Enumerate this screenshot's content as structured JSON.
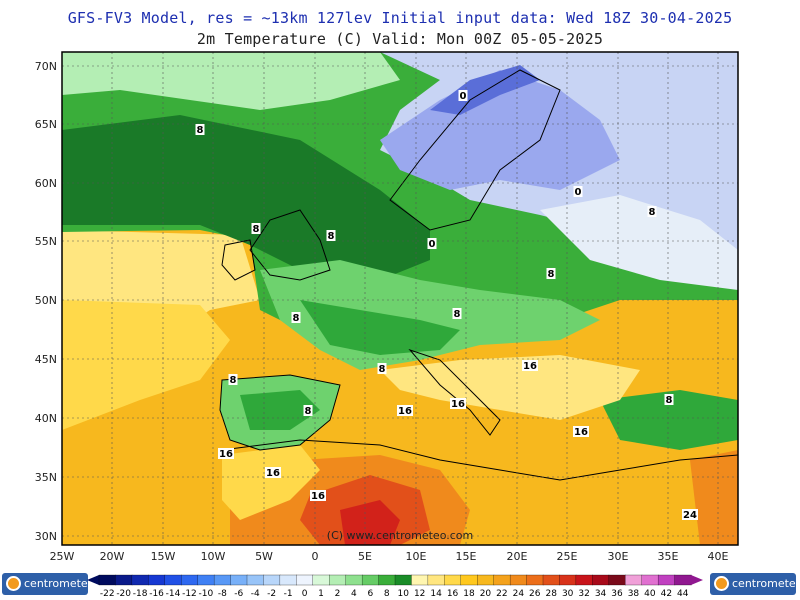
{
  "header": {
    "title_line1": "GFS-FV3 Model, res = ~13km 127lev    Initial input data: Wed 18Z 30-04-2025",
    "title_line2": "2m Temperature (C)  Valid: Mon 00Z 05-05-2025"
  },
  "map": {
    "watermark": "(C) www.centrometeo.com",
    "lon_labels": [
      "25W",
      "20W",
      "15W",
      "10W",
      "5W",
      "0",
      "5E",
      "10E",
      "15E",
      "20E",
      "25E",
      "30E",
      "35E",
      "40E"
    ],
    "lat_labels": [
      "70N",
      "65N",
      "60N",
      "55N",
      "50N",
      "45N",
      "40N",
      "35N",
      "30N"
    ],
    "contour_labels": [
      {
        "text": "8",
        "color": "#000000"
      },
      {
        "text": "0",
        "color": "#000000"
      },
      {
        "text": "8",
        "color": "#000000"
      },
      {
        "text": "0",
        "color": "#000000"
      },
      {
        "text": "0",
        "color": "#000000"
      },
      {
        "text": "8",
        "color": "#000000"
      },
      {
        "text": "8",
        "color": "#000000"
      },
      {
        "text": "8",
        "color": "#000000"
      },
      {
        "text": "8",
        "color": "#000000"
      },
      {
        "text": "8",
        "color": "#000000"
      },
      {
        "text": "8",
        "color": "#000000"
      },
      {
        "text": "8",
        "color": "#000000"
      },
      {
        "text": "16",
        "color": "#000000"
      },
      {
        "text": "16",
        "color": "#000000"
      },
      {
        "text": "16",
        "color": "#000000"
      },
      {
        "text": "16",
        "color": "#000000"
      },
      {
        "text": "16",
        "color": "#000000"
      },
      {
        "text": "16",
        "color": "#000000"
      },
      {
        "text": "24",
        "color": "#000000"
      },
      {
        "text": "16",
        "color": "#000000"
      },
      {
        "text": "8",
        "color": "#000000"
      },
      {
        "text": "8",
        "color": "#000000"
      }
    ],
    "colors": {
      "deep_cold": "#5a6ed8",
      "cold": "#9aa8ee",
      "cool": "#c8d4f4",
      "near_zero": "#e6eef8",
      "light_green": "#b4eeb4",
      "mid_green": "#6ed26e",
      "green": "#2fa83a",
      "dark_green": "#1a7a28",
      "pale_yellow": "#fff5b0",
      "yellow": "#ffd94a",
      "gold": "#f7b81e",
      "orange": "#f08a1c",
      "red_orange": "#e2501a",
      "red": "#d2221a"
    }
  },
  "legend": {
    "left_logo": "centrometeo",
    "right_logo": "centrometeo",
    "labels": [
      "-22",
      "-20",
      "-18",
      "-16",
      "-14",
      "-12",
      "-10",
      "-8",
      "-6",
      "-4",
      "-2",
      "-1",
      "0",
      "1",
      "2",
      "4",
      "6",
      "8",
      "10",
      "12",
      "14",
      "16",
      "18",
      "20",
      "22",
      "24",
      "26",
      "28",
      "30",
      "32",
      "34",
      "36",
      "38",
      "40",
      "42",
      "44"
    ],
    "colors": [
      "#000b5e",
      "#0a1a8a",
      "#1029b0",
      "#1638d2",
      "#2050e6",
      "#2e68f0",
      "#3f80f4",
      "#5898f6",
      "#78b0f8",
      "#98c4f8",
      "#b8d6fa",
      "#d8e8fc",
      "#eef4fe",
      "#d8f8d8",
      "#b4eeb4",
      "#8ee08e",
      "#66cc66",
      "#3aae3a",
      "#1a8c28",
      "#fff6b0",
      "#ffe680",
      "#ffd94a",
      "#ffc81e",
      "#f7b81e",
      "#f4a21c",
      "#f08a1c",
      "#ec6e1a",
      "#e2501a",
      "#d8321a",
      "#c8141a",
      "#a80a1a",
      "#7a0a1a",
      "#f0a0d8",
      "#e070d0",
      "#c040c0",
      "#901890"
    ]
  }
}
